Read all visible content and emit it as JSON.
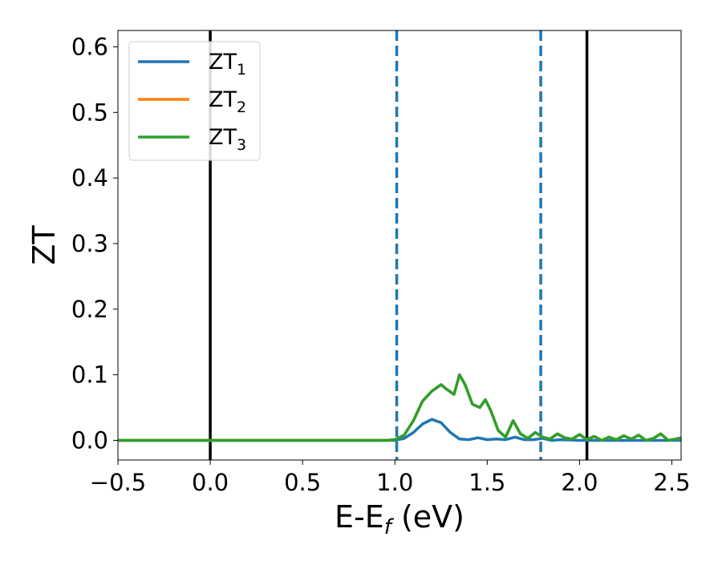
{
  "chart_data": {
    "type": "line",
    "title": "",
    "xlabel": {
      "base": "E-E",
      "sub": "f",
      "suffix": " (eV)"
    },
    "ylabel": "ZT",
    "xlim": [
      -0.5,
      2.55
    ],
    "ylim": [
      -0.03,
      0.625
    ],
    "xticks": [
      -0.5,
      0.0,
      0.5,
      1.0,
      1.5,
      2.0,
      2.5
    ],
    "xtick_labels": [
      "−0.5",
      "0.0",
      "0.5",
      "1.0",
      "1.5",
      "2.0",
      "2.5"
    ],
    "yticks": [
      0.0,
      0.1,
      0.2,
      0.3,
      0.4,
      0.5,
      0.6
    ],
    "ytick_labels": [
      "0.0",
      "0.1",
      "0.2",
      "0.3",
      "0.4",
      "0.5",
      "0.6"
    ],
    "grid": false,
    "legend_position": "top-left",
    "vlines": [
      {
        "x": 0.0,
        "style": "solid",
        "color": "#000000"
      },
      {
        "x": 1.01,
        "style": "dashed",
        "color": "#1f77b4"
      },
      {
        "x": 1.79,
        "style": "dashed",
        "color": "#1f77b4"
      },
      {
        "x": 2.04,
        "style": "solid",
        "color": "#000000"
      }
    ],
    "series": [
      {
        "name": "ZT",
        "sub": "1",
        "color": "#1f77b4",
        "x": [
          -0.5,
          0.0,
          0.5,
          0.95,
          1.0,
          1.05,
          1.1,
          1.15,
          1.2,
          1.25,
          1.3,
          1.35,
          1.4,
          1.45,
          1.5,
          1.55,
          1.6,
          1.65,
          1.7,
          1.75,
          1.8,
          1.85,
          1.9,
          2.0,
          2.1,
          2.2,
          2.3,
          2.4,
          2.55
        ],
        "y": [
          0.0,
          0.0,
          0.0,
          0.0,
          0.0,
          0.003,
          0.012,
          0.025,
          0.032,
          0.027,
          0.012,
          0.002,
          0.001,
          0.004,
          0.001,
          0.002,
          0.001,
          0.005,
          0.001,
          0.001,
          0.003,
          0.0,
          0.001,
          0.0,
          0.0,
          0.0,
          0.0,
          0.0,
          0.0
        ]
      },
      {
        "name": "ZT",
        "sub": "2",
        "color": "#ff7f0e",
        "x": [
          -0.5,
          0.0,
          0.5,
          0.95,
          1.0,
          1.05,
          1.1,
          1.15,
          1.2,
          1.25,
          1.28,
          1.32,
          1.35,
          1.38,
          1.42,
          1.46,
          1.49,
          1.52,
          1.56,
          1.6,
          1.64,
          1.68,
          1.72,
          1.76,
          1.8,
          1.84,
          1.88,
          1.92,
          1.96,
          2.0,
          2.04,
          2.08,
          2.12,
          2.16,
          2.2,
          2.24,
          2.28,
          2.32,
          2.36,
          2.4,
          2.44,
          2.48,
          2.52,
          2.55
        ],
        "y": [
          0.0,
          0.0,
          0.0,
          0.0,
          0.001,
          0.008,
          0.03,
          0.06,
          0.075,
          0.085,
          0.078,
          0.07,
          0.1,
          0.085,
          0.055,
          0.05,
          0.062,
          0.045,
          0.015,
          0.005,
          0.03,
          0.01,
          0.003,
          0.012,
          0.005,
          0.002,
          0.01,
          0.004,
          0.002,
          0.009,
          0.001,
          0.006,
          0.0,
          0.005,
          0.001,
          0.007,
          0.002,
          0.008,
          0.0,
          0.003,
          0.01,
          0.0,
          0.002,
          0.004
        ]
      },
      {
        "name": "ZT",
        "sub": "3",
        "color": "#2ca02c",
        "x": [
          -0.5,
          0.0,
          0.5,
          0.95,
          1.0,
          1.05,
          1.1,
          1.15,
          1.2,
          1.25,
          1.28,
          1.32,
          1.35,
          1.38,
          1.42,
          1.46,
          1.49,
          1.52,
          1.56,
          1.6,
          1.64,
          1.68,
          1.72,
          1.76,
          1.8,
          1.84,
          1.88,
          1.92,
          1.96,
          2.0,
          2.04,
          2.08,
          2.12,
          2.16,
          2.2,
          2.24,
          2.28,
          2.32,
          2.36,
          2.4,
          2.44,
          2.48,
          2.52,
          2.55
        ],
        "y": [
          0.0,
          0.0,
          0.0,
          0.0,
          0.001,
          0.008,
          0.03,
          0.06,
          0.075,
          0.085,
          0.078,
          0.07,
          0.1,
          0.085,
          0.055,
          0.05,
          0.062,
          0.045,
          0.015,
          0.005,
          0.03,
          0.01,
          0.003,
          0.012,
          0.005,
          0.002,
          0.01,
          0.004,
          0.002,
          0.009,
          0.001,
          0.006,
          0.0,
          0.005,
          0.001,
          0.007,
          0.002,
          0.008,
          0.0,
          0.003,
          0.01,
          0.0,
          0.002,
          0.004
        ]
      }
    ]
  }
}
